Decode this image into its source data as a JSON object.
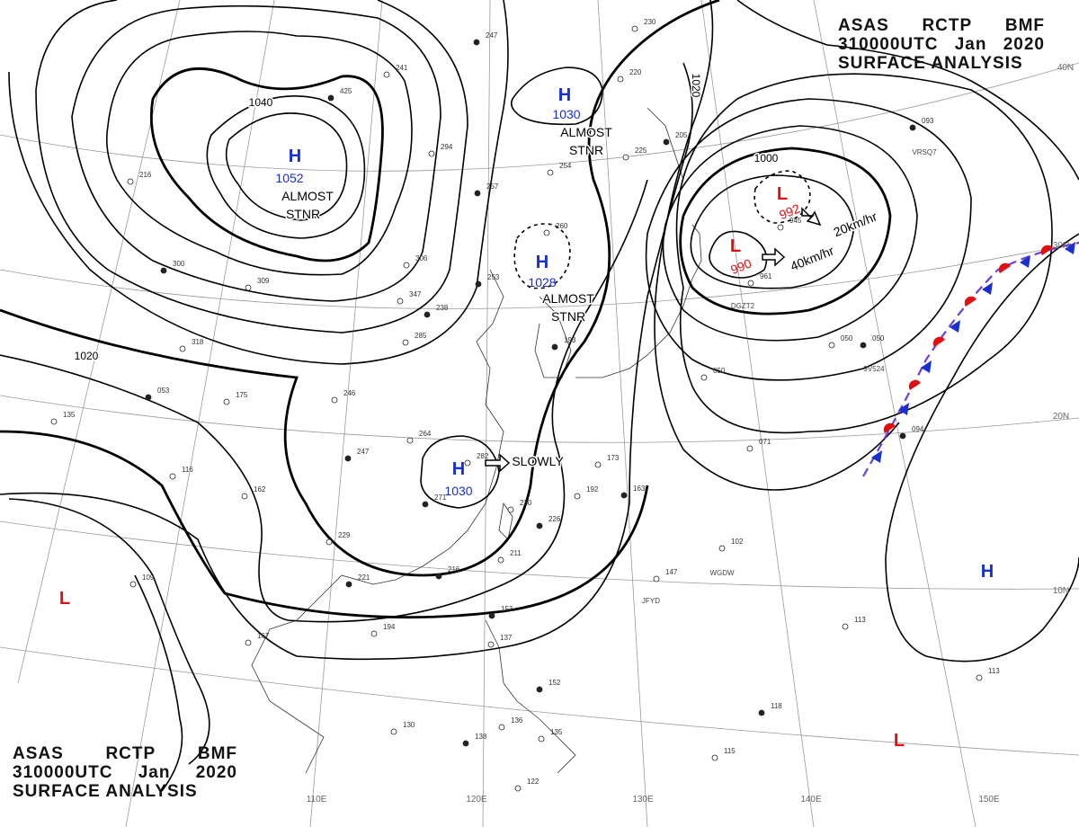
{
  "header": {
    "line1": [
      "ASAS",
      "RCTP",
      "BMF"
    ],
    "line2": [
      "310000UTC",
      "Jan",
      "2020"
    ],
    "line3": "SURFACE ANALYSIS"
  },
  "longitudes": [
    "110E",
    "120E",
    "130E",
    "140E",
    "150E"
  ],
  "latitudes": [
    "40N",
    "30N",
    "20N",
    "10N"
  ],
  "isobar_labels": [
    "1040",
    "1020",
    "1020",
    "1000"
  ],
  "pressure_centers": [
    {
      "type": "H",
      "value": "1052",
      "note": [
        "ALMOST",
        "STNR"
      ],
      "color": "#1a2fd0"
    },
    {
      "type": "H",
      "value": "1030",
      "note": [
        "ALMOST",
        "STNR"
      ],
      "color": "#1a2fd0"
    },
    {
      "type": "H",
      "value": "1028",
      "note": [
        "ALMOST",
        "STNR"
      ],
      "color": "#1a2fd0"
    },
    {
      "type": "H",
      "value": "1030",
      "note": [
        "SLOWLY"
      ],
      "color": "#1a2fd0"
    },
    {
      "type": "L",
      "value": "992",
      "note": [
        "20km/hr"
      ],
      "color": "#e01010"
    },
    {
      "type": "L",
      "value": "990",
      "note": [
        "40km/hr"
      ],
      "color": "#e01010"
    },
    {
      "type": "H",
      "value": "",
      "note": [],
      "color": "#1a2fd0"
    },
    {
      "type": "L",
      "value": "",
      "note": [],
      "color": "#e01010"
    },
    {
      "type": "L",
      "value": "",
      "note": [],
      "color": "#e01010"
    }
  ],
  "ship_ids": [
    "VRSQ7",
    "9V524",
    "DGZT2",
    "WGDW",
    "JFYD"
  ],
  "station_values": [
    "247",
    "230",
    "220",
    "205",
    "225",
    "254",
    "257",
    "294",
    "241",
    "425",
    "216",
    "306",
    "300",
    "309",
    "347",
    "238",
    "285",
    "318",
    "253",
    "246",
    "175",
    "053",
    "135",
    "116",
    "247",
    "264",
    "282",
    "271",
    "162",
    "229",
    "221",
    "167",
    "194",
    "153",
    "137",
    "130",
    "138",
    "136",
    "135",
    "152",
    "122",
    "115",
    "118",
    "113",
    "113",
    "094",
    "071",
    "050",
    "050",
    "102",
    "147",
    "163",
    "192",
    "173",
    "226",
    "230",
    "211",
    "216",
    "109",
    "260",
    "193",
    "961",
    "945",
    "093",
    "050"
  ],
  "colors": {
    "high": "#1a2fd0",
    "low": "#e01010",
    "front_warm": "#e01010",
    "front_cold": "#1a2fd0",
    "isobar": "#000000"
  }
}
